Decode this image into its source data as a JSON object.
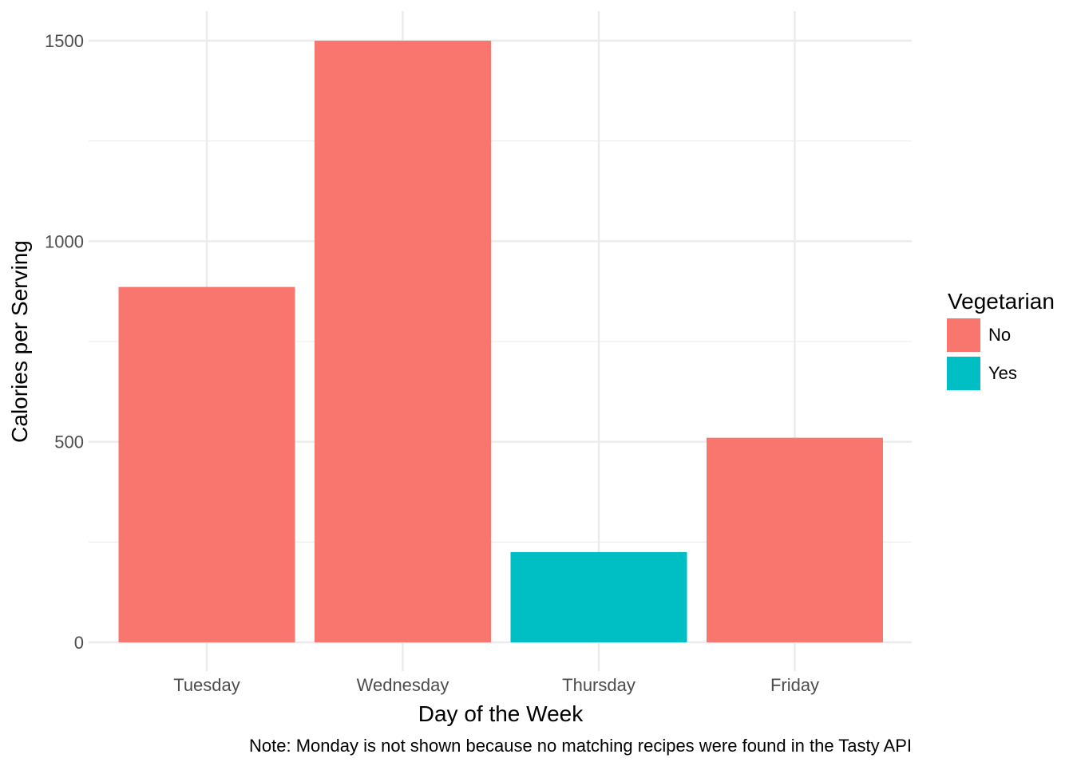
{
  "chart_data": {
    "type": "bar",
    "title": "",
    "xlabel": "Day of the Week",
    "ylabel": "Calories per Serving",
    "caption": "Note: Monday is not shown because no matching recipes were found in the Tasty API",
    "categories": [
      "Tuesday",
      "Wednesday",
      "Thursday",
      "Friday"
    ],
    "values": [
      886,
      1500,
      225,
      510
    ],
    "groups": [
      "No",
      "No",
      "Yes",
      "No"
    ],
    "ylim": [
      0,
      1575
    ],
    "yticks": [
      0,
      500,
      1000,
      1500
    ],
    "grid": true,
    "legend": {
      "title": "Vegetarian",
      "placement": "right",
      "entries": [
        {
          "label": "No",
          "color": "#F8766D"
        },
        {
          "label": "Yes",
          "color": "#00BFC4"
        }
      ]
    },
    "colors": {
      "No": "#F8766D",
      "Yes": "#00BFC4",
      "grid": "#EBEBEB"
    }
  }
}
